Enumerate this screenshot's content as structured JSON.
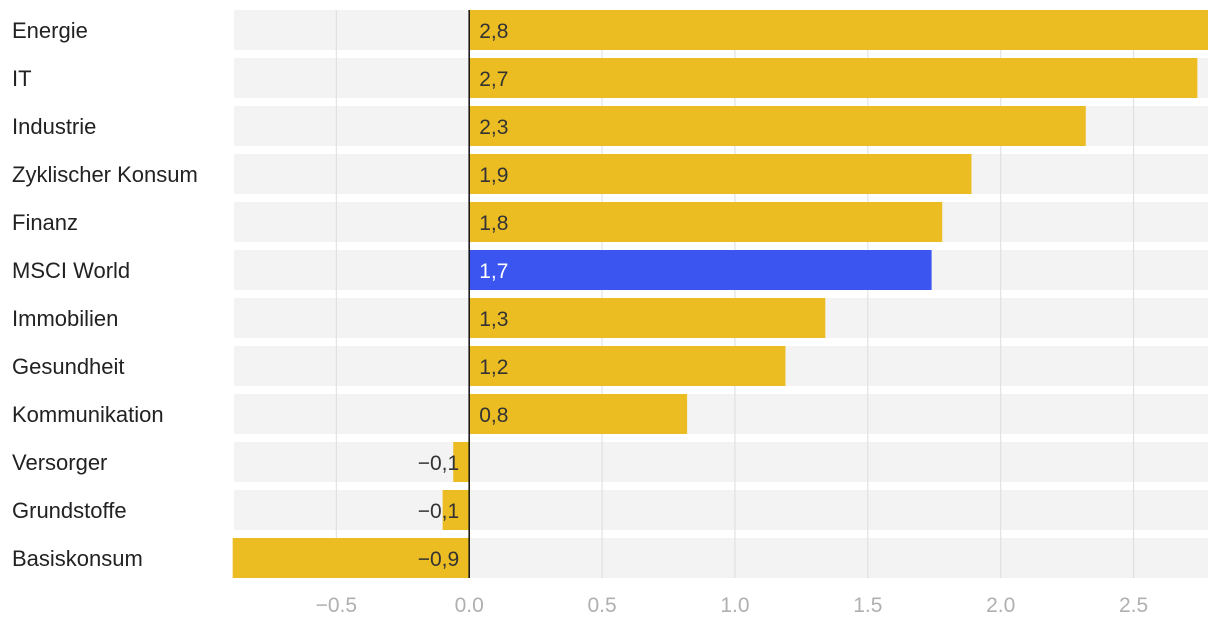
{
  "chart_data": {
    "type": "bar",
    "orientation": "horizontal",
    "categories": [
      "Energie",
      "IT",
      "Industrie",
      "Zyklischer Konsum",
      "Finanz",
      "MSCI World",
      "Immobilien",
      "Gesundheit",
      "Kommunikation",
      "Versorger",
      "Grundstoffe",
      "Basiskonsum"
    ],
    "values": [
      2.78,
      2.74,
      2.32,
      1.89,
      1.78,
      1.74,
      1.34,
      1.19,
      0.82,
      -0.06,
      -0.1,
      -0.89
    ],
    "value_labels": [
      "2,8",
      "2,7",
      "2,3",
      "1,9",
      "1,8",
      "1,7",
      "1,3",
      "1,2",
      "0,8",
      "−0,1",
      "−0,1",
      "−0,9"
    ],
    "highlight_index": 5,
    "xlim": [
      -0.885,
      2.78
    ],
    "xticks": [
      -0.5,
      0.0,
      0.5,
      1.0,
      1.5,
      2.0,
      2.5
    ],
    "xtick_labels": [
      "−0.5",
      "0.0",
      "0.5",
      "1.0",
      "1.5",
      "2.0",
      "2.5"
    ],
    "grid": true,
    "colors": {
      "bar": "#EBBD22",
      "highlight": "#3A55F0",
      "track": "#F3F3F3",
      "grid": "#DDDDDD",
      "zero_line": "#111111"
    }
  }
}
